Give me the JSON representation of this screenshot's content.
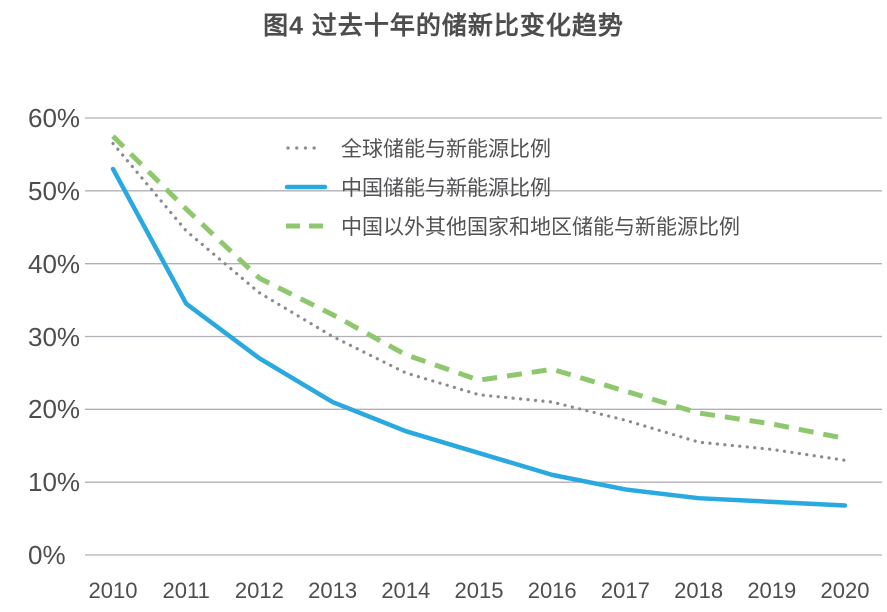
{
  "title": "图4 过去十年的储新比变化趋势",
  "colors": {
    "title_text": "#4d4d4d",
    "axis_text": "#4e4e50",
    "gridline": "#b2b0b6",
    "global_series": "#8c8c8c",
    "china_series": "#29a9e0",
    "row_series": "#8fc76f"
  },
  "chart_data": {
    "type": "line",
    "title": "图4 过去十年的储新比变化趋势",
    "x": [
      2010,
      2011,
      2012,
      2013,
      2014,
      2015,
      2016,
      2017,
      2018,
      2019,
      2020
    ],
    "x_tick_labels": [
      "2010",
      "2011",
      "2012",
      "2013",
      "2014",
      "2015",
      "2016",
      "2017",
      "2018",
      "2019",
      "2020"
    ],
    "y_tick_labels": [
      "0%",
      "10%",
      "20%",
      "30%",
      "40%",
      "50%",
      "60%"
    ],
    "y_tick_values": [
      0,
      10,
      20,
      30,
      40,
      50,
      60
    ],
    "ylim": [
      0,
      60
    ],
    "unit": "percent",
    "grid": "horizontal",
    "legend_position": "inside-top-left",
    "series": [
      {
        "name": "全球储能与新能源比例",
        "style": "dotted",
        "color": "#8c8c8c",
        "values": [
          56.5,
          44.5,
          36,
          30,
          25,
          22,
          21,
          18.5,
          15.5,
          14.5,
          13
        ]
      },
      {
        "name": "中国储能与新能源比例",
        "style": "solid",
        "color": "#29a9e0",
        "values": [
          53,
          34.5,
          27,
          21,
          17,
          14,
          11,
          9,
          7.8,
          7.3,
          6.8
        ]
      },
      {
        "name": "中国以外其他国家和地区储能与新能源比例",
        "style": "dashed",
        "color": "#8fc76f",
        "values": [
          57.5,
          47.5,
          38,
          33,
          27.5,
          24,
          25.5,
          22.5,
          19.5,
          18,
          16
        ]
      }
    ]
  }
}
